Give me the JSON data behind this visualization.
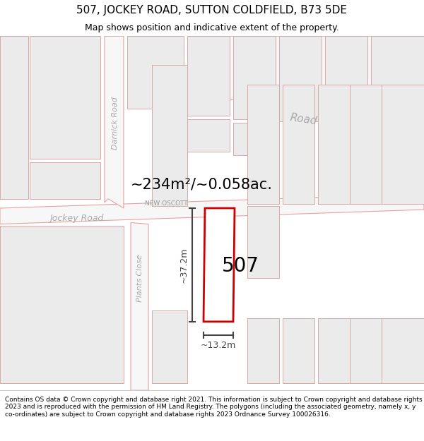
{
  "title": "507, JOCKEY ROAD, SUTTON COLDFIELD, B73 5DE",
  "subtitle": "Map shows position and indicative extent of the property.",
  "footer": "Contains OS data © Crown copyright and database right 2021. This information is subject to Crown copyright and database rights 2023 and is reproduced with the permission of HM Land Registry. The polygons (including the associated geometry, namely x, y co-ordinates) are subject to Crown copyright and database rights 2023 Ordnance Survey 100026316.",
  "area_label": "~234m²/~0.058ac.",
  "width_label": "~13.2m",
  "height_label": "~37.2m",
  "number_label": "507",
  "map_bg": "#f7f7f7",
  "road_line_color": "#e8a0a0",
  "block_color": "#ebebeb",
  "block_edge_color": "#d8a8a8",
  "highlight_color": "#ffffff",
  "plot_border_color": "#cc0000",
  "street_label_color": "#aaaaaa",
  "dim_color": "#444444",
  "title_fontsize": 11,
  "subtitle_fontsize": 9,
  "footer_fontsize": 6.5,
  "map_border_color": "#cccccc"
}
